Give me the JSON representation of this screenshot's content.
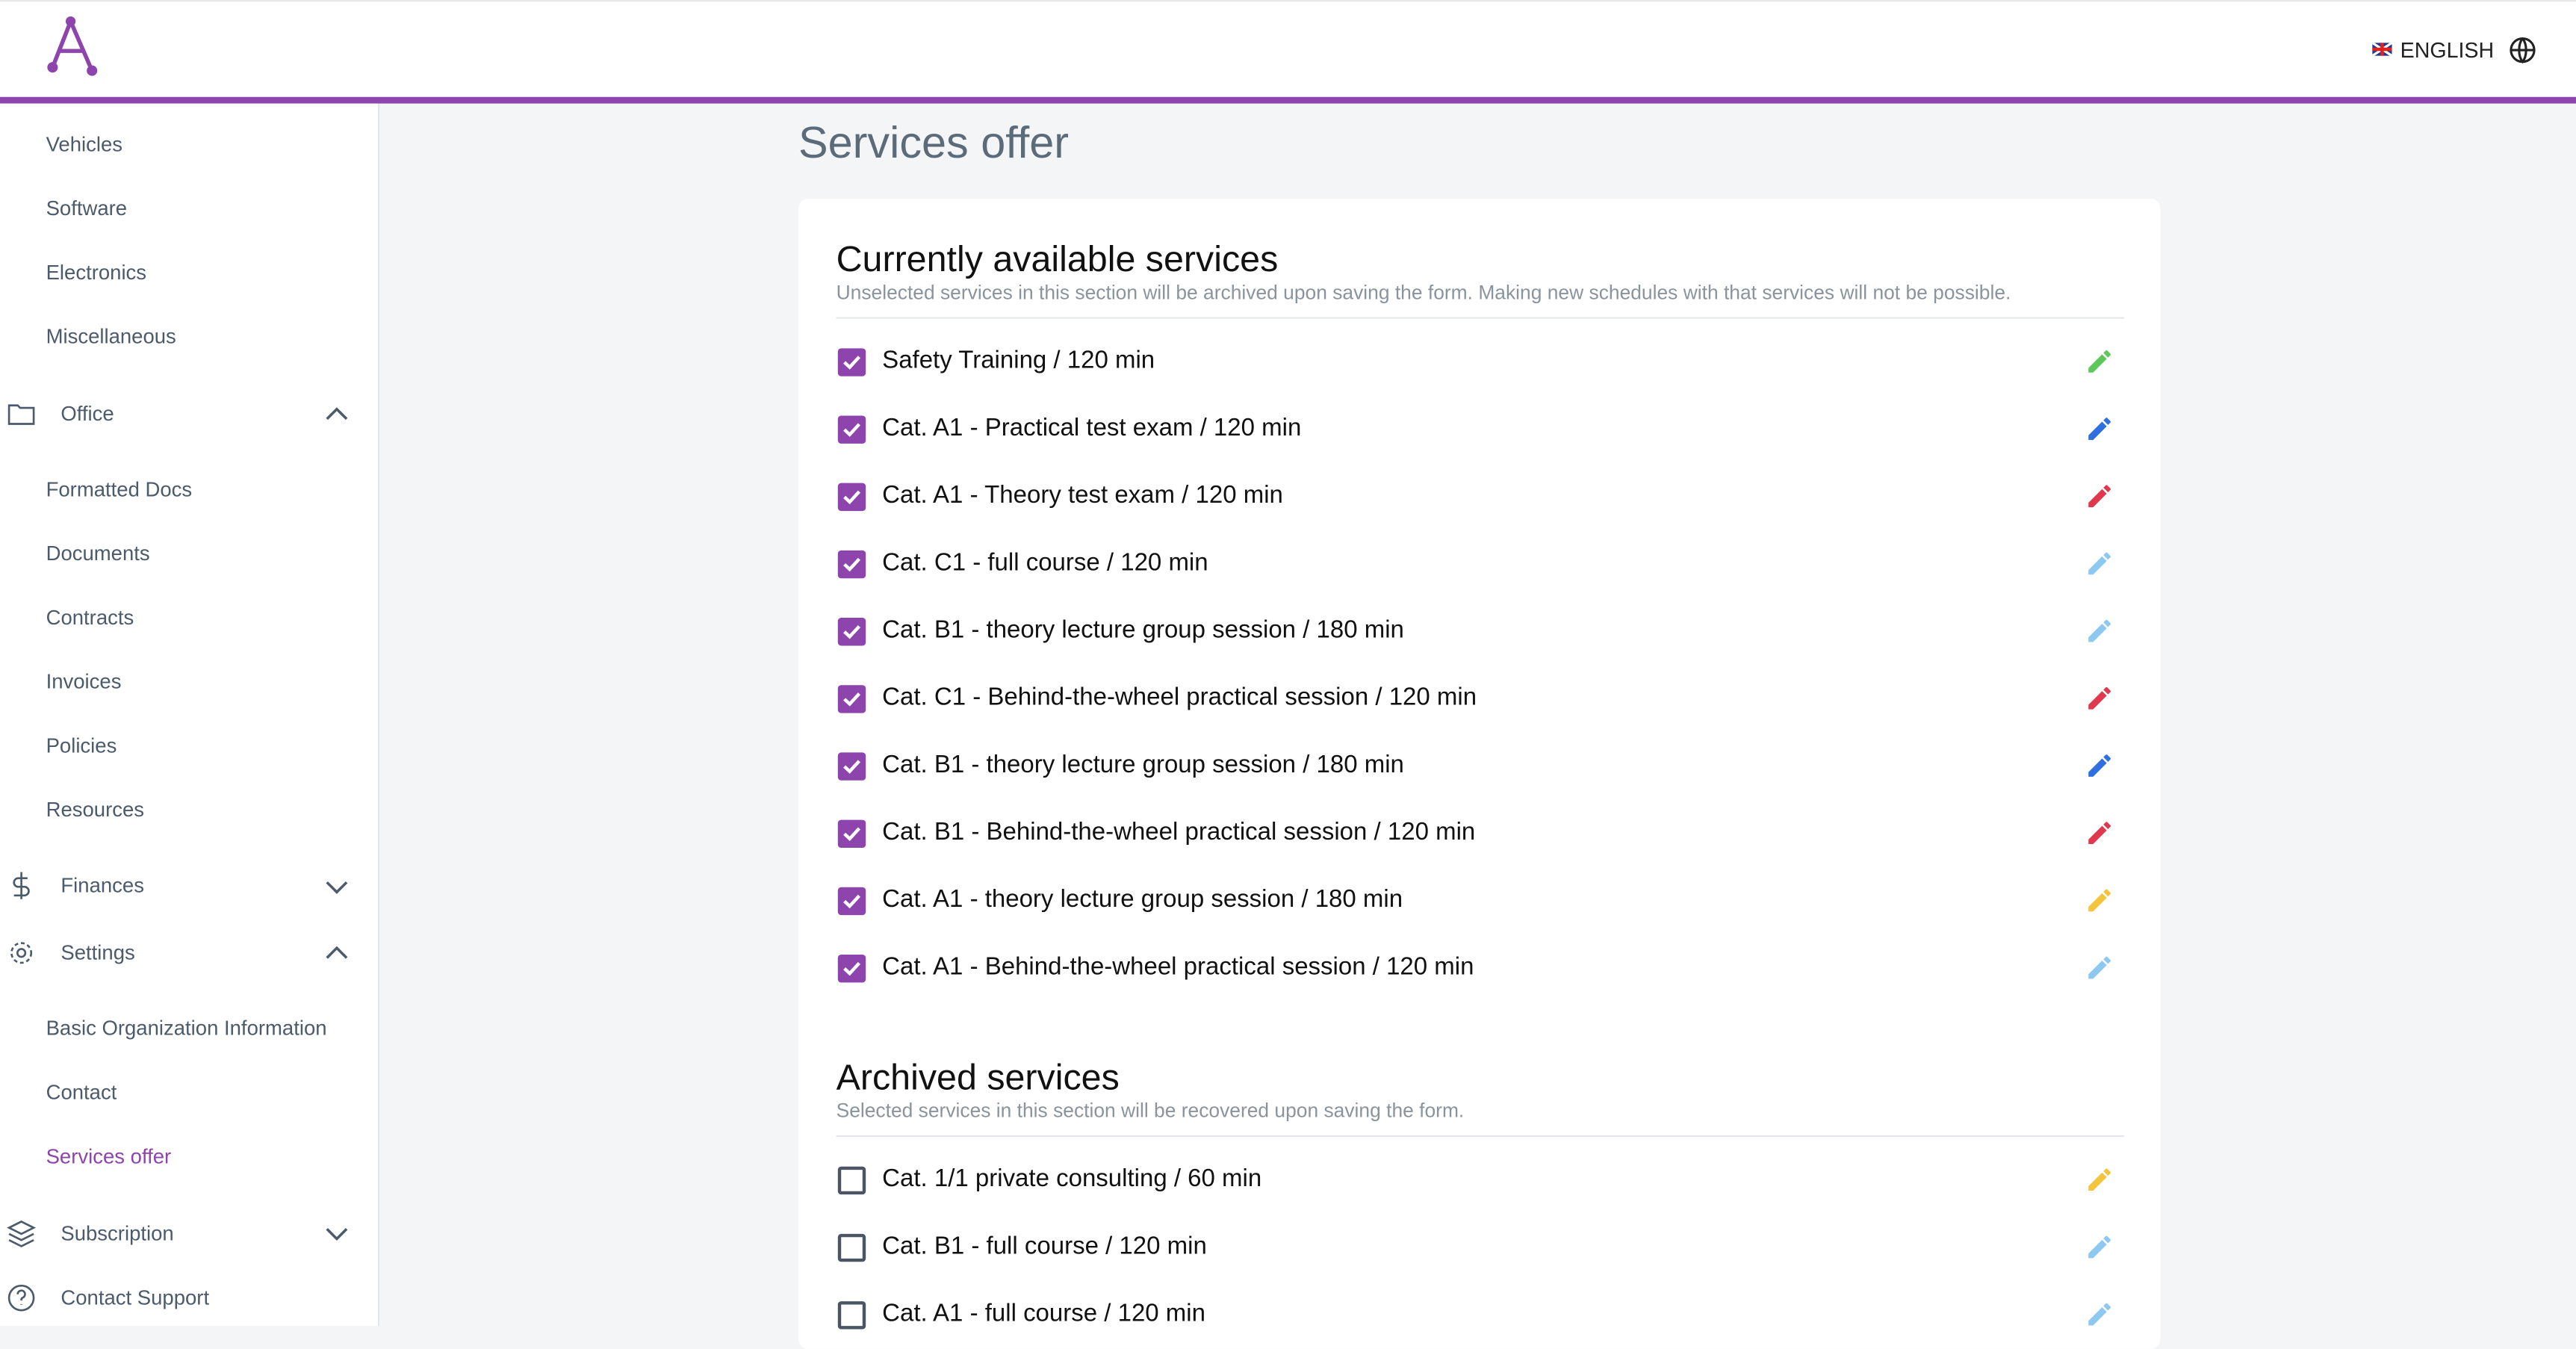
{
  "header": {
    "language": "ENGLISH"
  },
  "sidebar": {
    "vehicles": "Vehicles",
    "software": "Software",
    "electronics": "Electronics",
    "miscellaneous": "Miscellaneous",
    "office": "Office",
    "formatted_docs": "Formatted Docs",
    "documents": "Documents",
    "contracts": "Contracts",
    "invoices": "Invoices",
    "policies": "Policies",
    "resources": "Resources",
    "finances": "Finances",
    "settings": "Settings",
    "basic_info": "Basic Organization Information",
    "contact": "Contact",
    "services_offer": "Services offer",
    "subscription": "Subscription",
    "contact_support": "Contact Support"
  },
  "page": {
    "title": "Services offer"
  },
  "sections": [
    {
      "title": "Currently available services",
      "subtitle": "Unselected services in this section will be archived upon saving the form. Making new schedules with that services will not be possible.",
      "services": [
        {
          "label": "Safety Training / 120 min",
          "checked": true,
          "color": "#5cc85c"
        },
        {
          "label": "Cat. A1 - Practical test exam / 120 min",
          "checked": true,
          "color": "#2f6fe0"
        },
        {
          "label": "Cat. A1 - Theory test exam / 120 min",
          "checked": true,
          "color": "#e0394f"
        },
        {
          "label": "Cat. C1 - full course / 120 min",
          "checked": true,
          "color": "#8cc8f0"
        },
        {
          "label": "Cat. B1 - theory lecture group session / 180 min",
          "checked": true,
          "color": "#8cc8f0"
        },
        {
          "label": "Cat. C1 - Behind-the-wheel practical session / 120 min",
          "checked": true,
          "color": "#e0394f"
        },
        {
          "label": "Cat. B1 - theory lecture group session / 180 min",
          "checked": true,
          "color": "#2f6fe0"
        },
        {
          "label": "Cat. B1 - Behind-the-wheel practical session / 120 min",
          "checked": true,
          "color": "#e0394f"
        },
        {
          "label": "Cat. A1 - theory lecture group session / 180 min",
          "checked": true,
          "color": "#f2c53d"
        },
        {
          "label": "Cat. A1 - Behind-the-wheel practical session / 120 min",
          "checked": true,
          "color": "#8cc8f0"
        }
      ]
    },
    {
      "title": "Archived services",
      "subtitle": "Selected services in this section will be recovered upon saving the form.",
      "services": [
        {
          "label": "Cat. 1/1 private consulting / 60 min",
          "checked": false,
          "color": "#f2c53d"
        },
        {
          "label": "Cat. B1 - full course / 120 min",
          "checked": false,
          "color": "#8cc8f0"
        },
        {
          "label": "Cat. A1 - full course / 120 min",
          "checked": false,
          "color": "#8cc8f0"
        }
      ]
    }
  ]
}
